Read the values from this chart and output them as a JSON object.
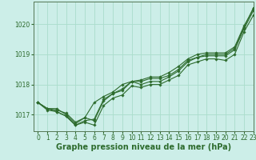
{
  "background_color": "#cceee8",
  "grid_color": "#aaddcc",
  "line_color": "#2d6b2d",
  "marker_color": "#2d6b2d",
  "xlabel": "Graphe pression niveau de la mer (hPa)",
  "xlabel_fontsize": 7,
  "xlim": [
    -0.5,
    23
  ],
  "ylim": [
    1016.45,
    1020.75
  ],
  "yticks": [
    1017,
    1018,
    1019,
    1020
  ],
  "xticks": [
    0,
    1,
    2,
    3,
    4,
    5,
    6,
    7,
    8,
    9,
    10,
    11,
    12,
    13,
    14,
    15,
    16,
    17,
    18,
    19,
    20,
    21,
    22,
    23
  ],
  "series": [
    [
      1017.4,
      1017.2,
      1017.2,
      1017.0,
      1016.7,
      1016.9,
      1016.8,
      1017.45,
      1017.7,
      1017.85,
      1018.1,
      1018.1,
      1018.2,
      1018.2,
      1018.3,
      1018.5,
      1018.8,
      1018.9,
      1019.0,
      1019.0,
      1019.0,
      1019.2,
      1019.9,
      1020.55
    ],
    [
      1017.4,
      1017.15,
      1017.1,
      1016.95,
      1016.65,
      1016.8,
      1016.85,
      1017.5,
      1017.7,
      1017.8,
      1018.1,
      1018.0,
      1018.1,
      1018.1,
      1018.25,
      1018.45,
      1018.75,
      1018.9,
      1018.95,
      1018.95,
      1018.95,
      1019.15,
      1019.85,
      1020.45
    ],
    [
      1017.4,
      1017.2,
      1017.15,
      1017.05,
      1016.75,
      1016.9,
      1017.4,
      1017.6,
      1017.75,
      1018.0,
      1018.1,
      1018.15,
      1018.25,
      1018.25,
      1018.4,
      1018.6,
      1018.85,
      1019.0,
      1019.05,
      1019.05,
      1019.05,
      1019.25,
      1019.95,
      1020.5
    ],
    [
      1017.4,
      1017.2,
      1017.1,
      1016.95,
      1016.65,
      1016.75,
      1016.65,
      1017.3,
      1017.55,
      1017.65,
      1017.95,
      1017.9,
      1018.0,
      1018.0,
      1018.15,
      1018.3,
      1018.65,
      1018.75,
      1018.85,
      1018.85,
      1018.8,
      1019.0,
      1019.75,
      1020.3
    ]
  ]
}
